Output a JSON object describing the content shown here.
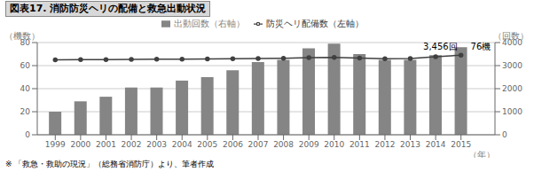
{
  "chart_data": {
    "type": "bar",
    "title": "図表17.  消防防災ヘリの配備と救急出動状況",
    "categories": [
      "1999",
      "2000",
      "2001",
      "2002",
      "2003",
      "2004",
      "2005",
      "2006",
      "2007",
      "2008",
      "2009",
      "2010",
      "2011",
      "2012",
      "2013",
      "2014",
      "2015"
    ],
    "series": [
      {
        "name": "出動回数（右軸）",
        "type": "bar",
        "color": "#858585",
        "values": [
          20,
          29,
          33,
          41,
          41,
          47,
          50,
          56,
          63,
          65,
          75,
          79,
          70,
          65,
          65,
          69,
          76
        ]
      },
      {
        "name": "防災ヘリ配備数（左軸）",
        "type": "line",
        "axis": "y2",
        "color": "#404040",
        "marker": "circle",
        "values": [
          3250,
          3255,
          3260,
          3270,
          3275,
          3280,
          3290,
          3295,
          3310,
          3320,
          3350,
          3360,
          3330,
          3300,
          3310,
          3380,
          3456
        ]
      }
    ],
    "xlabel": "（年）",
    "ylabel": "（機数）",
    "y2label": "（回数）",
    "ylim": [
      0,
      80
    ],
    "yticks": [
      0,
      20,
      40,
      60,
      80
    ],
    "y2lim": [
      0,
      4000
    ],
    "y2ticks": [
      0,
      1000,
      2000,
      3000,
      4000
    ],
    "grid": true,
    "legend": "top",
    "annotations": [
      {
        "text": "3,456回",
        "x": "2015",
        "y": 3456,
        "axis": "y2"
      },
      {
        "text": "76機",
        "x": "2015",
        "y": 76
      }
    ],
    "footnote": "※ 「救急・救助の現況」（総務省消防庁）より、筆者作成"
  }
}
